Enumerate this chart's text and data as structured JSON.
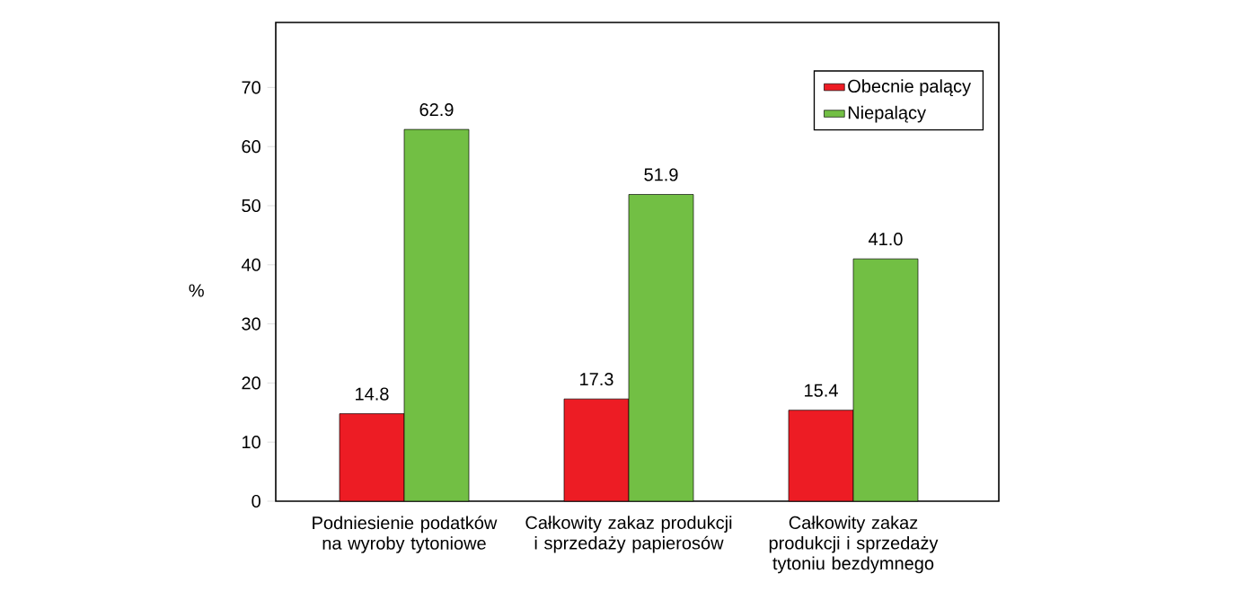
{
  "chart_data": {
    "type": "bar",
    "ylabel": "%",
    "categories": [
      "Podniesienie podatków na wyroby tytoniowe",
      "Całkowity zakaz produkcji i sprzedaży papierosów",
      "Całkowity zakaz produkcji i sprzedaży tytoniu bezdymnego"
    ],
    "series": [
      {
        "name": "Obecnie palący",
        "color": "#ed1c24",
        "values": [
          14.8,
          17.3,
          15.4
        ],
        "value_labels": [
          "14.8",
          "17.3",
          "15.4"
        ]
      },
      {
        "name": "Niepalący",
        "color": "#72bf44",
        "values": [
          62.9,
          51.9,
          41.0
        ],
        "value_labels": [
          "62.9",
          "51.9",
          "41.0"
        ]
      }
    ],
    "ylim": [
      0,
      81
    ],
    "yticks": [
      0,
      10,
      20,
      30,
      40,
      50,
      60,
      70
    ],
    "grid": false,
    "legend": "top right"
  }
}
